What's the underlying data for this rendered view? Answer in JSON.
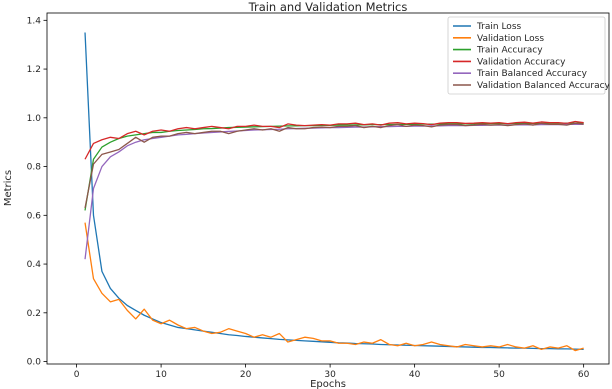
{
  "chart_data": {
    "type": "line",
    "title": "Train and Validation Metrics",
    "xlabel": "Epochs",
    "ylabel": "Metrics",
    "xlim": [
      -3.5,
      63
    ],
    "ylim": [
      -0.01,
      1.43
    ],
    "xticks": [
      0,
      10,
      20,
      30,
      40,
      50,
      60
    ],
    "yticks": [
      0.0,
      0.2,
      0.4,
      0.6,
      0.8,
      1.0,
      1.2,
      1.4
    ],
    "ytick_labels": [
      "0.0",
      "0.2",
      "0.4",
      "0.6",
      "0.8",
      "1.0",
      "1.2",
      "1.4"
    ],
    "grid": false,
    "legend_position": "top-right",
    "x": [
      1,
      2,
      3,
      4,
      5,
      6,
      7,
      8,
      9,
      10,
      11,
      12,
      13,
      14,
      15,
      16,
      17,
      18,
      19,
      20,
      21,
      22,
      23,
      24,
      25,
      26,
      27,
      28,
      29,
      30,
      31,
      32,
      33,
      34,
      35,
      36,
      37,
      38,
      39,
      40,
      41,
      42,
      43,
      44,
      45,
      46,
      47,
      48,
      49,
      50,
      51,
      52,
      53,
      54,
      55,
      56,
      57,
      58,
      59,
      60
    ],
    "series": [
      {
        "name": "Train Loss",
        "color": "#1f77b4",
        "values": [
          1.35,
          0.6,
          0.37,
          0.3,
          0.26,
          0.23,
          0.21,
          0.19,
          0.175,
          0.16,
          0.15,
          0.14,
          0.135,
          0.13,
          0.125,
          0.12,
          0.115,
          0.11,
          0.107,
          0.103,
          0.1,
          0.097,
          0.094,
          0.091,
          0.089,
          0.087,
          0.085,
          0.083,
          0.081,
          0.079,
          0.077,
          0.076,
          0.074,
          0.073,
          0.072,
          0.07,
          0.069,
          0.068,
          0.067,
          0.066,
          0.065,
          0.064,
          0.063,
          0.062,
          0.061,
          0.06,
          0.059,
          0.058,
          0.058,
          0.057,
          0.056,
          0.055,
          0.055,
          0.054,
          0.053,
          0.053,
          0.052,
          0.052,
          0.051,
          0.05
        ]
      },
      {
        "name": "Validation Loss",
        "color": "#ff7f0e",
        "values": [
          0.57,
          0.34,
          0.28,
          0.245,
          0.255,
          0.21,
          0.175,
          0.215,
          0.17,
          0.155,
          0.17,
          0.15,
          0.135,
          0.14,
          0.125,
          0.115,
          0.12,
          0.135,
          0.125,
          0.115,
          0.1,
          0.11,
          0.1,
          0.115,
          0.08,
          0.09,
          0.1,
          0.095,
          0.085,
          0.085,
          0.075,
          0.075,
          0.07,
          0.08,
          0.075,
          0.09,
          0.07,
          0.065,
          0.075,
          0.065,
          0.07,
          0.08,
          0.07,
          0.065,
          0.06,
          0.07,
          0.065,
          0.06,
          0.065,
          0.06,
          0.07,
          0.06,
          0.055,
          0.065,
          0.05,
          0.06,
          0.055,
          0.065,
          0.045,
          0.055
        ]
      },
      {
        "name": "Train Accuracy",
        "color": "#2ca02c",
        "values": [
          0.62,
          0.83,
          0.88,
          0.9,
          0.915,
          0.925,
          0.93,
          0.935,
          0.94,
          0.94,
          0.945,
          0.948,
          0.95,
          0.952,
          0.955,
          0.956,
          0.958,
          0.96,
          0.961,
          0.962,
          0.963,
          0.964,
          0.965,
          0.966,
          0.967,
          0.967,
          0.968,
          0.968,
          0.969,
          0.969,
          0.97,
          0.97,
          0.971,
          0.971,
          0.972,
          0.972,
          0.972,
          0.973,
          0.973,
          0.973,
          0.974,
          0.974,
          0.974,
          0.975,
          0.975,
          0.975,
          0.975,
          0.976,
          0.976,
          0.976,
          0.976,
          0.977,
          0.977,
          0.977,
          0.977,
          0.978,
          0.978,
          0.978,
          0.978,
          0.979
        ]
      },
      {
        "name": "Validation Accuracy",
        "color": "#d62728",
        "values": [
          0.83,
          0.895,
          0.91,
          0.92,
          0.915,
          0.935,
          0.945,
          0.93,
          0.945,
          0.95,
          0.945,
          0.955,
          0.96,
          0.955,
          0.96,
          0.965,
          0.96,
          0.955,
          0.965,
          0.965,
          0.97,
          0.965,
          0.965,
          0.96,
          0.975,
          0.97,
          0.968,
          0.97,
          0.972,
          0.97,
          0.975,
          0.975,
          0.978,
          0.972,
          0.975,
          0.97,
          0.978,
          0.98,
          0.975,
          0.978,
          0.976,
          0.972,
          0.978,
          0.98,
          0.98,
          0.977,
          0.978,
          0.98,
          0.978,
          0.98,
          0.976,
          0.98,
          0.982,
          0.978,
          0.983,
          0.98,
          0.98,
          0.977,
          0.985,
          0.98
        ]
      },
      {
        "name": "Train Balanced Accuracy",
        "color": "#9467bd",
        "values": [
          0.42,
          0.71,
          0.8,
          0.84,
          0.86,
          0.885,
          0.9,
          0.91,
          0.915,
          0.92,
          0.925,
          0.93,
          0.932,
          0.935,
          0.938,
          0.94,
          0.942,
          0.944,
          0.946,
          0.948,
          0.95,
          0.951,
          0.952,
          0.953,
          0.955,
          0.956,
          0.957,
          0.958,
          0.959,
          0.96,
          0.96,
          0.961,
          0.962,
          0.962,
          0.963,
          0.964,
          0.964,
          0.965,
          0.965,
          0.966,
          0.966,
          0.967,
          0.967,
          0.968,
          0.968,
          0.968,
          0.969,
          0.969,
          0.97,
          0.97,
          0.97,
          0.971,
          0.971,
          0.971,
          0.972,
          0.972,
          0.972,
          0.973,
          0.973,
          0.973
        ]
      },
      {
        "name": "Validation Balanced Accuracy",
        "color": "#8c564b",
        "values": [
          0.63,
          0.81,
          0.85,
          0.86,
          0.87,
          0.895,
          0.92,
          0.9,
          0.92,
          0.925,
          0.925,
          0.935,
          0.94,
          0.935,
          0.94,
          0.945,
          0.945,
          0.935,
          0.945,
          0.95,
          0.955,
          0.95,
          0.955,
          0.945,
          0.96,
          0.955,
          0.955,
          0.96,
          0.962,
          0.96,
          0.965,
          0.965,
          0.968,
          0.96,
          0.965,
          0.96,
          0.968,
          0.972,
          0.965,
          0.97,
          0.968,
          0.963,
          0.97,
          0.972,
          0.972,
          0.968,
          0.97,
          0.973,
          0.97,
          0.972,
          0.968,
          0.972,
          0.975,
          0.97,
          0.977,
          0.973,
          0.973,
          0.97,
          0.978,
          0.974
        ]
      }
    ]
  }
}
